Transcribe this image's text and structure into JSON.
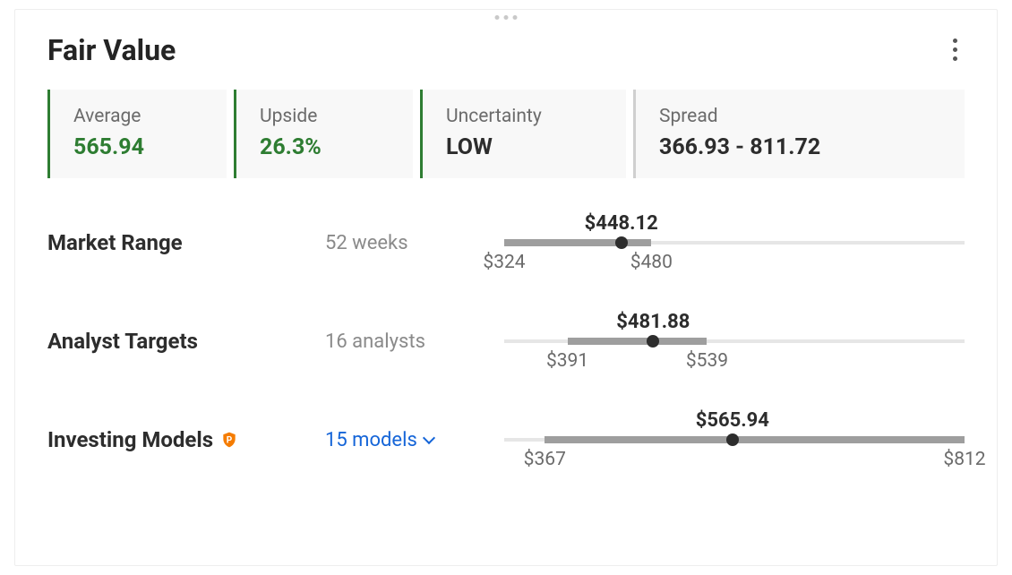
{
  "header": {
    "title": "Fair Value"
  },
  "stats": {
    "average": {
      "label": "Average",
      "value": "565.94",
      "value_color": "#2e7d32",
      "border_color": "#2e7d32"
    },
    "upside": {
      "label": "Upside",
      "value": "26.3%",
      "value_color": "#2e7d32",
      "border_color": "#2e7d32"
    },
    "uncertainty": {
      "label": "Uncertainty",
      "value": "LOW",
      "value_color": "#2d2d2d",
      "border_color": "#2e7d32"
    },
    "spread": {
      "label": "Spread",
      "value": "366.93 - 811.72",
      "value_color": "#2d2d2d",
      "border_color": "#cfcfcf"
    }
  },
  "scale": {
    "min": 324,
    "max": 812
  },
  "ranges": {
    "market": {
      "label": "Market Range",
      "sub": "52 weeks",
      "current": 448.12,
      "low": 324,
      "high": 480,
      "current_label": "$448.12",
      "low_label": "$324",
      "high_label": "$480"
    },
    "analyst": {
      "label": "Analyst Targets",
      "sub": "16 analysts",
      "current": 481.88,
      "low": 391,
      "high": 539,
      "current_label": "$481.88",
      "low_label": "$391",
      "high_label": "$539"
    },
    "models": {
      "label": "Investing Models",
      "sub": "15 models",
      "current": 565.94,
      "low": 367,
      "high": 812,
      "current_label": "$565.94",
      "low_label": "$367",
      "high_label": "$812"
    }
  },
  "colors": {
    "track": "#e6e6e6",
    "fill": "#9e9e9e",
    "marker": "#2d2d2d",
    "badge": "#f57c00"
  }
}
